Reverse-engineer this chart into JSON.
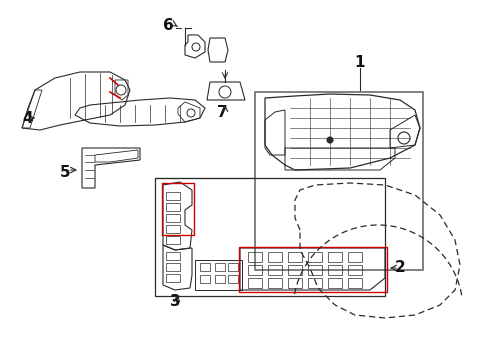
{
  "bg_color": "#ffffff",
  "line_color": "#2a2a2a",
  "red_color": "#cc0000",
  "gray_color": "#777777",
  "label_color": "#111111",
  "figsize": [
    4.89,
    3.6
  ],
  "dpi": 100,
  "xlim": [
    0,
    489
  ],
  "ylim": [
    0,
    360
  ]
}
